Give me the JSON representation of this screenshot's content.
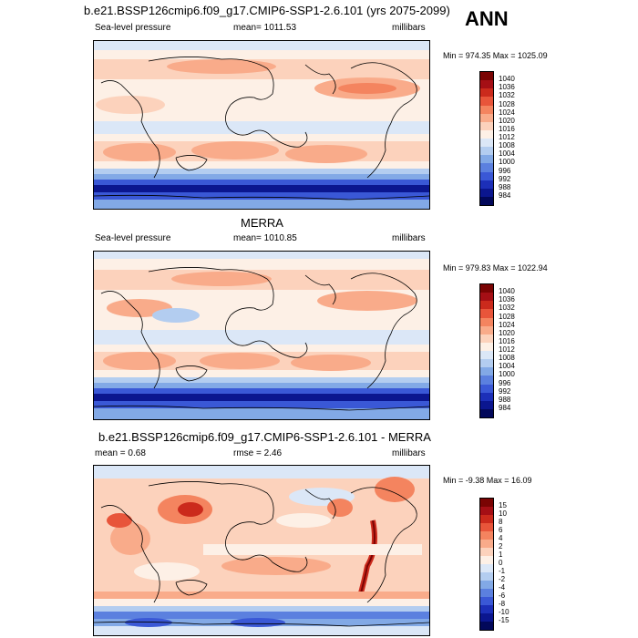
{
  "season": "ANN",
  "panels": [
    {
      "title": "b.e21.BSSP126cmip6.f09_g17.CMIP6-SSP1-2.6.101 (yrs 2075-2099)",
      "left_label": "Sea-level pressure",
      "center_label": "mean= 1011.53",
      "right_label": "millibars",
      "minmax": "Min = 974.35 Max = 1025.09",
      "colorbar": {
        "labels": [
          "1040",
          "1036",
          "1032",
          "1028",
          "1024",
          "1020",
          "1016",
          "1012",
          "1008",
          "1004",
          "1000",
          "996",
          "992",
          "988",
          "984"
        ],
        "colors": [
          "#7a0403",
          "#a50f15",
          "#cb2a1c",
          "#e8553a",
          "#f4845f",
          "#f9ab8a",
          "#fcd2bc",
          "#fdf0e6",
          "#dbe7f7",
          "#b3cdf0",
          "#82a9e6",
          "#5b80df",
          "#3a58d6",
          "#1c2fb8",
          "#0b168f",
          "#02085a"
        ]
      }
    },
    {
      "title": "MERRA",
      "left_label": "Sea-level pressure",
      "center_label": "mean= 1010.85",
      "right_label": "millibars",
      "minmax": "Min = 979.83 Max = 1022.94",
      "colorbar": {
        "labels": [
          "1040",
          "1036",
          "1032",
          "1028",
          "1024",
          "1020",
          "1016",
          "1012",
          "1008",
          "1004",
          "1000",
          "996",
          "992",
          "988",
          "984"
        ],
        "colors": [
          "#7a0403",
          "#a50f15",
          "#cb2a1c",
          "#e8553a",
          "#f4845f",
          "#f9ab8a",
          "#fcd2bc",
          "#fdf0e6",
          "#dbe7f7",
          "#b3cdf0",
          "#82a9e6",
          "#5b80df",
          "#3a58d6",
          "#1c2fb8",
          "#0b168f",
          "#02085a"
        ]
      }
    },
    {
      "title": "b.e21.BSSP126cmip6.f09_g17.CMIP6-SSP1-2.6.101 - MERRA",
      "left_label": "mean =   0.68",
      "center_label": "rmse =   2.46",
      "right_label": "millibars",
      "minmax": "Min =  -9.38 Max =  16.09",
      "colorbar": {
        "labels": [
          "15",
          "10",
          "8",
          "6",
          "4",
          "2",
          "1",
          "0",
          "-1",
          "-2",
          "-4",
          "-6",
          "-8",
          "-10",
          "-15"
        ],
        "colors": [
          "#7a0403",
          "#a50f15",
          "#cb2a1c",
          "#e8553a",
          "#f4845f",
          "#f9ab8a",
          "#fcd2bc",
          "#fdf0e6",
          "#dbe7f7",
          "#b3cdf0",
          "#82a9e6",
          "#5b80df",
          "#3a58d6",
          "#1c2fb8",
          "#0b168f",
          "#02085a"
        ]
      }
    }
  ]
}
